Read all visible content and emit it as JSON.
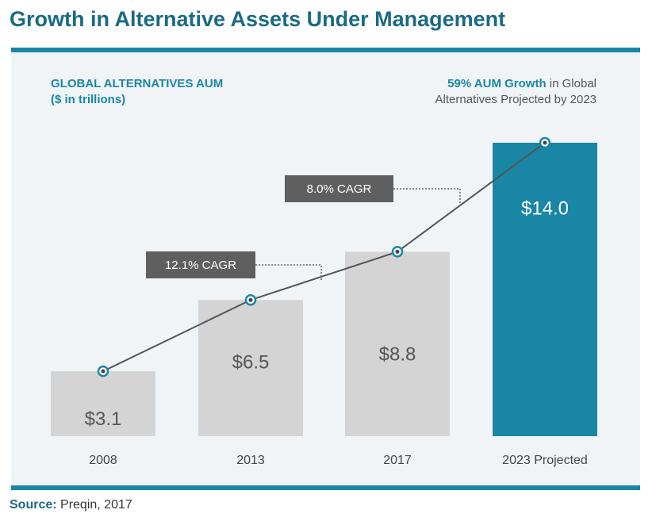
{
  "header": {
    "title": "Growth in Alternative Assets Under Management"
  },
  "subtitle_left": {
    "line1": "GLOBAL ALTERNATIVES AUM",
    "line2": "($ in trillions)"
  },
  "subtitle_right": {
    "highlight": "59% AUM Growth",
    "text1": " in Global",
    "line2": "Alternatives Projected by 2023"
  },
  "source": {
    "label": "Source:",
    "text": " Preqin, 2017"
  },
  "chart_data": {
    "type": "bar",
    "title": "Growth in Alternative Assets Under Management",
    "ylabel": "($ in trillions)",
    "categories": [
      "2008",
      "2013",
      "2017",
      "2023 Projected"
    ],
    "values": [
      3.1,
      6.5,
      8.8,
      14.0
    ],
    "value_labels": [
      "$3.1",
      "$6.5",
      "$8.8",
      "$14.0"
    ],
    "bar_colors": [
      "#d4d4d4",
      "#d4d4d4",
      "#d4d4d4",
      "#1a86a6"
    ],
    "value_label_colors": [
      "#555555",
      "#555555",
      "#555555",
      "#ffffff"
    ],
    "line_overlay": {
      "values": [
        3.1,
        6.5,
        8.8,
        14.0
      ],
      "color": "#555555"
    },
    "annotations": [
      {
        "text": "12.1% CAGR",
        "from": "2008",
        "to": "2017"
      },
      {
        "text": "8.0% CAGR",
        "from": "2017",
        "to": "2023 Projected"
      }
    ],
    "ylim": [
      0,
      14.0
    ],
    "grid": false
  }
}
